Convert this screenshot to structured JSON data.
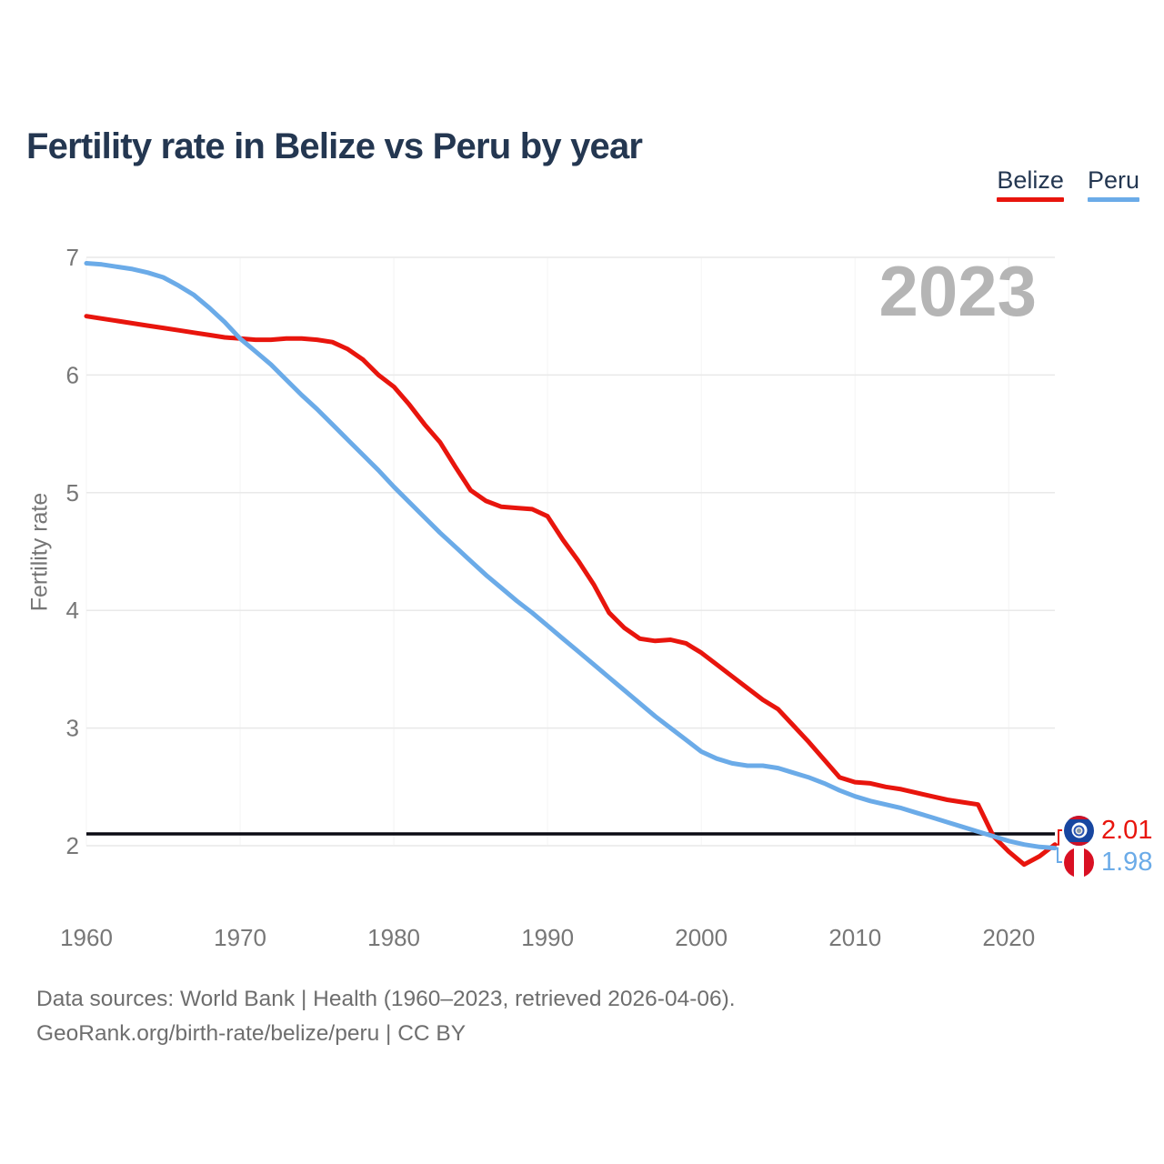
{
  "title": "Fertility rate in Belize vs Peru by year",
  "watermark": "2023",
  "legend": [
    {
      "label": "Belize",
      "color": "#e8150d"
    },
    {
      "label": "Peru",
      "color": "#6babe8"
    }
  ],
  "end_labels": [
    {
      "country": "Belize",
      "value": "2.01",
      "flag": "belize-flag",
      "text_color": "#e8150d"
    },
    {
      "country": "Peru",
      "value": "1.98",
      "flag": "peru-flag",
      "text_color": "#6babe8"
    }
  ],
  "footer": {
    "line1": "Data sources: World Bank | Health (1960–2023, retrieved 2026-04-06).",
    "line2": "GeoRank.org/birth-rate/belize/peru | CC BY"
  },
  "colors": {
    "belize": "#e8150d",
    "peru": "#6babe8",
    "title": "#243751",
    "muted_text": "#757575",
    "watermark": "#b5b5b5",
    "gridline": "#e9e9e9",
    "reference_line": "#0b0b14"
  },
  "chart_data": {
    "type": "line",
    "title": "Fertility rate in Belize vs Peru by year",
    "xlabel": "",
    "ylabel": "Fertility rate",
    "xlim": [
      1960,
      2023
    ],
    "ylim": [
      2,
      7
    ],
    "x_ticks": [
      1960,
      1970,
      1980,
      1990,
      2000,
      2010,
      2020
    ],
    "y_ticks": [
      2,
      3,
      4,
      5,
      6,
      7
    ],
    "grid": "horizontal-major",
    "legend_position": "top-right",
    "reference_line": 2.1,
    "x": [
      1960,
      1961,
      1962,
      1963,
      1964,
      1965,
      1966,
      1967,
      1968,
      1969,
      1970,
      1971,
      1972,
      1973,
      1974,
      1975,
      1976,
      1977,
      1978,
      1979,
      1980,
      1981,
      1982,
      1983,
      1984,
      1985,
      1986,
      1987,
      1988,
      1989,
      1990,
      1991,
      1992,
      1993,
      1994,
      1995,
      1996,
      1997,
      1998,
      1999,
      2000,
      2001,
      2002,
      2003,
      2004,
      2005,
      2006,
      2007,
      2008,
      2009,
      2010,
      2011,
      2012,
      2013,
      2014,
      2015,
      2016,
      2017,
      2018,
      2019,
      2020,
      2021,
      2022,
      2023
    ],
    "series": [
      {
        "name": "Belize",
        "color": "#e8150d",
        "end_value": 2.01,
        "values": [
          6.5,
          6.48,
          6.46,
          6.44,
          6.42,
          6.4,
          6.38,
          6.36,
          6.34,
          6.32,
          6.31,
          6.3,
          6.3,
          6.31,
          6.31,
          6.3,
          6.28,
          6.22,
          6.13,
          6.0,
          5.9,
          5.75,
          5.58,
          5.43,
          5.22,
          5.02,
          4.93,
          4.88,
          4.87,
          4.86,
          4.8,
          4.6,
          4.42,
          4.22,
          3.98,
          3.85,
          3.76,
          3.74,
          3.75,
          3.72,
          3.64,
          3.54,
          3.44,
          3.34,
          3.24,
          3.16,
          3.02,
          2.88,
          2.73,
          2.58,
          2.54,
          2.53,
          2.5,
          2.48,
          2.45,
          2.42,
          2.39,
          2.37,
          2.35,
          2.08,
          1.95,
          1.84,
          1.91,
          2.01
        ]
      },
      {
        "name": "Peru",
        "color": "#6babe8",
        "end_value": 1.98,
        "values": [
          6.95,
          6.94,
          6.92,
          6.9,
          6.87,
          6.83,
          6.76,
          6.68,
          6.57,
          6.45,
          6.31,
          6.2,
          6.09,
          5.96,
          5.83,
          5.71,
          5.58,
          5.45,
          5.32,
          5.19,
          5.05,
          4.92,
          4.79,
          4.66,
          4.54,
          4.42,
          4.3,
          4.19,
          4.08,
          3.98,
          3.87,
          3.76,
          3.65,
          3.54,
          3.43,
          3.32,
          3.21,
          3.1,
          3.0,
          2.9,
          2.8,
          2.74,
          2.7,
          2.68,
          2.68,
          2.66,
          2.62,
          2.58,
          2.53,
          2.47,
          2.42,
          2.38,
          2.35,
          2.32,
          2.28,
          2.24,
          2.2,
          2.16,
          2.12,
          2.08,
          2.04,
          2.01,
          1.99,
          1.98
        ]
      }
    ]
  }
}
